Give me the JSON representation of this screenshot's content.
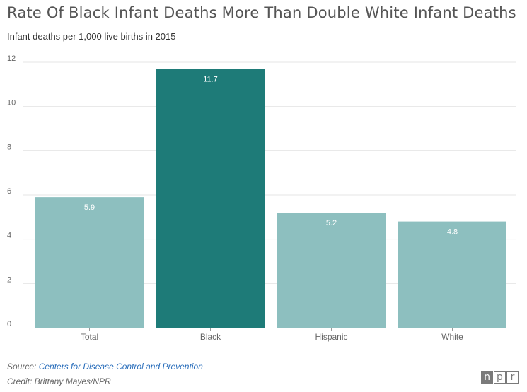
{
  "header": {
    "title": "Rate Of Black Infant Deaths More Than Double White Infant Deaths",
    "subtitle": "Infant deaths per 1,000 live births in 2015"
  },
  "chart_data": {
    "type": "bar",
    "categories": [
      "Total",
      "Black",
      "Hispanic",
      "White"
    ],
    "values": [
      5.9,
      11.7,
      5.2,
      4.8
    ],
    "data_labels": [
      "5.9",
      "11.7",
      "5.2",
      "4.8"
    ],
    "ylim": [
      0,
      12
    ],
    "yticks": [
      0,
      2,
      4,
      6,
      8,
      10,
      12
    ],
    "grid": true,
    "legend": "none",
    "highlight_category": "Black",
    "colors": {
      "default_bar": "#8dbfbf",
      "highlight_bar": "#1e7b78",
      "label_text": "#ffffff",
      "grid": "#e6e6e6",
      "axis_text": "#666666"
    }
  },
  "footer": {
    "source_prefix": "Source:",
    "source_link": "Centers for Disease Control and Prevention",
    "credit": "Credit: Brittany Mayes/NPR"
  },
  "logo": {
    "letters": [
      "n",
      "p",
      "r"
    ]
  }
}
